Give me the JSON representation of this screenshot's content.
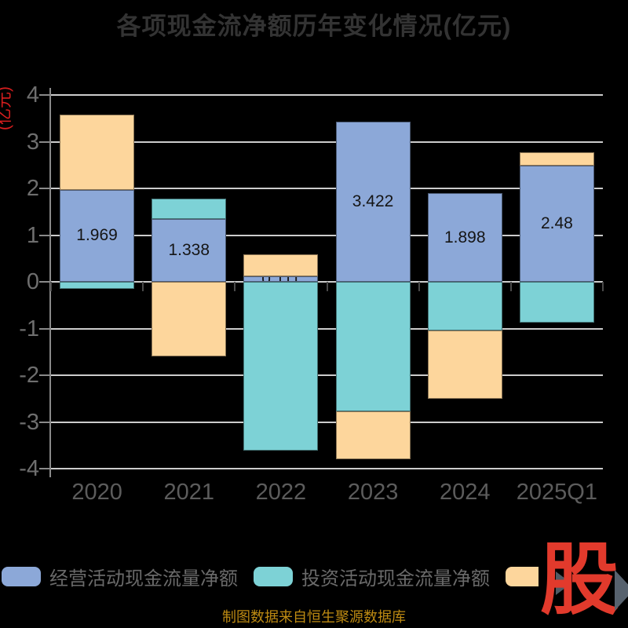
{
  "title": "各项现金流净额历年变化情况(亿元)",
  "y_axis_unit_label": "(亿元)",
  "caption": "制图数据来自恒生聚源数据库",
  "watermark": {
    "text": "股"
  },
  "legend": {
    "items": [
      {
        "label": "经营活动现金流量净额",
        "color": "#8CA8D8"
      },
      {
        "label": "投资活动现金流量净额",
        "color": "#7DD2D6"
      },
      {
        "label": "",
        "color": "#FDD69C"
      }
    ]
  },
  "chart_data": {
    "type": "bar",
    "stacked": true,
    "title": "各项现金流净额历年变化情况(亿元)",
    "categories": [
      "2020",
      "2021",
      "2022",
      "2023",
      "2024",
      "2025Q1"
    ],
    "series": [
      {
        "name": "经营活动现金流量净额",
        "color": "#8CA8D8",
        "values": [
          1.969,
          1.338,
          0.111,
          3.422,
          1.898,
          2.48
        ],
        "data_labels": [
          "1.969",
          "1.338",
          "0.111",
          "3.422",
          "1.898",
          "2.48"
        ]
      },
      {
        "name": "投资活动现金流量净额",
        "color": "#7DD2D6",
        "values": [
          -0.15,
          0.44,
          -3.61,
          -2.77,
          -1.05,
          -0.87
        ]
      },
      {
        "name": "",
        "color": "#FDD69C",
        "values": [
          1.61,
          -1.59,
          0.48,
          -1.03,
          -1.45,
          0.3
        ]
      }
    ],
    "ylabel": "(亿元)",
    "xlabel": "",
    "ylim": [
      -4,
      4
    ],
    "y_ticks": [
      4,
      3,
      2,
      1,
      0,
      -1,
      -2,
      -3,
      -4
    ],
    "grid": true,
    "legend_position": "bottom"
  },
  "colors": {
    "background": "#000000",
    "title": "#333333",
    "y_unit_label": "#D91E1E",
    "gridline": "#CCCCCC",
    "axis_line": "#8A8A8A",
    "x_tick": "#4A4A4A",
    "x_labels": "#5C5C5C",
    "y_labels": "#6E6E6E",
    "legend_text": "#6A6A6A",
    "value_label": "#151515",
    "caption": "#BD8A12",
    "logo_red": "#E23A2C",
    "logo_arrow": "#57626E"
  }
}
